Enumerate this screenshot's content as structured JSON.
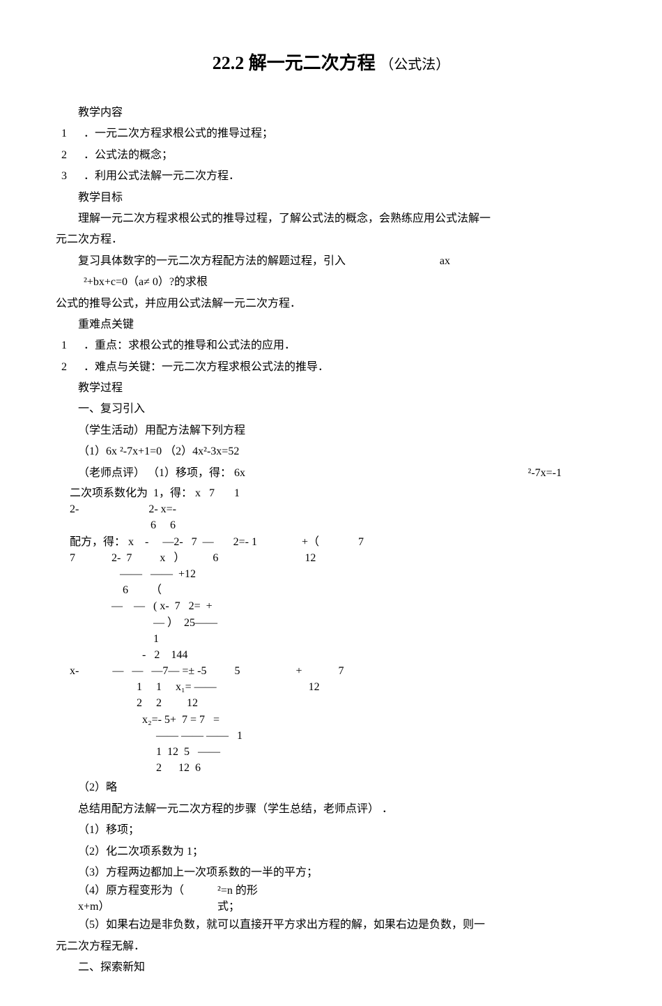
{
  "title_main": "22.2  解一元二次方程",
  "title_sub": "（公式法）",
  "lines": {
    "l1": "教学内容",
    "i1_n": "1",
    "i1_t": "．一元二次方程求根公式的推导过程；",
    "i2_n": "2",
    "i2_t": "．公式法的概念；",
    "i3_n": "3",
    "i3_t": "．利用公式法解一元二次方程．",
    "l2": "教学目标",
    "l3": "理解一元二次方程求根公式的推导过程，了解公式法的概念，会熟练应用公式法解一",
    "l3b": "元二次方程．",
    "l4a": "复习具体数字的一元二次方程配方法的解题过程，引入",
    "l4b": "ax",
    "l5": "²+bx+c=0（a≠ 0）?的求根",
    "l6": "公式的推导公式，并应用公式法解一元二次方程．",
    "l7": "重难点关键",
    "i4_n": "1",
    "i4_t": "．重点：求根公式的推导和公式法的应用．",
    "i5_n": "2",
    "i5_t": "．难点与关键：一元二次方程求根公式法的推导．",
    "l8": "教学过程",
    "l9": "一、复习引入",
    "l10": "（学生活动）用配方法解下列方程",
    "l11": "（1）6x          ²-7x+1=0      （2）4x²-3x=52",
    "l12a": "（老师点评）     （1）移项，得： 6x",
    "l12b": "²-7x=-1",
    "m1": "     二次项系数化为  1，得： x   7       1",
    "m1b": "     2-                         2- x=- ",
    "m1c": "                                  6     6",
    "m2a": "     配方，得： x    -     —2-   7  —       2=- 1                +（              7",
    "m2b": "     7             2-  7          x   ）          6                               12",
    "m2c": "                       ——   ——  +12",
    "m2d": "                        6        （",
    "m3a": "                    —    —   ( x-  7   2=  +",
    "m3b": "                                   — ）  25——",
    "m3c": "                                   1",
    "m3d": "                               -   2    144",
    "m4a": "     x-            —   —   —7— =± -5          5                    +             7",
    "m4b": "                             1     1     x₁= ——                                 12",
    "m4c": "                             2     2         12",
    "m5a": "                               x₂=- 5+  7 = 7   =",
    "m5b": "                                    —— —— ——   1",
    "m5c": "                                    1  12  5   ——",
    "m5d": "                                    2      12  6",
    "l13": "（2）略",
    "l14": "总结用配方法解一元二次方程的步骤（学生总结，老师点评）        ．",
    "l15": "（1）移项；",
    "l16": "（2）化二次项系数为   1；",
    "l17": "（3）方程两边都加上一次项系数的一半的平方；",
    "l18a": "（4）原方程变形为（",
    "l18b": "²=n 的形",
    "l18c": "x+m）",
    "l18d": "式；",
    "l19": "（5）如果右边是非负数，就可以直接开平方求出方程的解，如果右边是负数，则一",
    "l19b": "元二次方程无解．",
    "l20": "二、探索新知"
  }
}
